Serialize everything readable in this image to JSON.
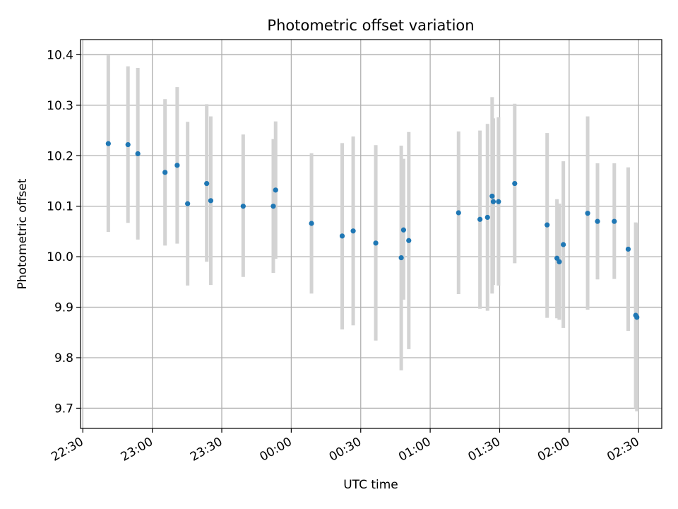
{
  "chart_data": {
    "type": "scatter",
    "title": "Photometric offset variation",
    "xlabel": "UTC time",
    "ylabel": "Photometric offset",
    "grid": true,
    "legend": "none",
    "xlim": [
      "22:29",
      "02:40"
    ],
    "ylim": [
      9.66,
      10.43
    ],
    "x_ticks": [
      "22:30",
      "23:00",
      "23:30",
      "00:00",
      "00:30",
      "01:00",
      "01:30",
      "02:00",
      "02:30"
    ],
    "y_ticks": [
      "9.7",
      "9.8",
      "9.9",
      "10.0",
      "10.1",
      "10.2",
      "10.3",
      "10.4"
    ],
    "colors": {
      "points": "#1f77b4",
      "errorbars": "#d3d3d3",
      "grid": "#b0b0b0"
    },
    "points": [
      {
        "x": "22:41:00",
        "y": 10.224,
        "lo": 10.049,
        "hi": 10.399
      },
      {
        "x": "22:49:30",
        "y": 10.222,
        "lo": 10.067,
        "hi": 10.377
      },
      {
        "x": "22:53:45",
        "y": 10.204,
        "lo": 10.034,
        "hi": 10.374
      },
      {
        "x": "23:05:30",
        "y": 10.167,
        "lo": 10.022,
        "hi": 10.312
      },
      {
        "x": "23:10:45",
        "y": 10.181,
        "lo": 10.026,
        "hi": 10.336
      },
      {
        "x": "23:15:15",
        "y": 10.105,
        "lo": 9.943,
        "hi": 10.267
      },
      {
        "x": "23:23:30",
        "y": 10.145,
        "lo": 9.99,
        "hi": 10.302
      },
      {
        "x": "23:25:15",
        "y": 10.111,
        "lo": 9.944,
        "hi": 10.278
      },
      {
        "x": "23:39:15",
        "y": 10.1,
        "lo": 9.96,
        "hi": 10.242
      },
      {
        "x": "23:52:15",
        "y": 10.1,
        "lo": 9.968,
        "hi": 10.233
      },
      {
        "x": "23:53:15",
        "y": 10.132,
        "lo": 9.996,
        "hi": 10.268
      },
      {
        "x": "00:08:45",
        "y": 10.066,
        "lo": 9.927,
        "hi": 10.205
      },
      {
        "x": "00:22:00",
        "y": 10.041,
        "lo": 9.856,
        "hi": 10.225
      },
      {
        "x": "00:26:45",
        "y": 10.051,
        "lo": 9.864,
        "hi": 10.238
      },
      {
        "x": "00:36:30",
        "y": 10.027,
        "lo": 9.834,
        "hi": 10.221
      },
      {
        "x": "00:47:30",
        "y": 9.998,
        "lo": 9.775,
        "hi": 10.22
      },
      {
        "x": "00:48:30",
        "y": 10.053,
        "lo": 9.915,
        "hi": 10.194
      },
      {
        "x": "00:50:45",
        "y": 10.032,
        "lo": 9.817,
        "hi": 10.247
      },
      {
        "x": "01:12:15",
        "y": 10.087,
        "lo": 9.926,
        "hi": 10.248
      },
      {
        "x": "01:21:30",
        "y": 10.074,
        "lo": 9.897,
        "hi": 10.25
      },
      {
        "x": "01:24:45",
        "y": 10.078,
        "lo": 9.893,
        "hi": 10.263
      },
      {
        "x": "01:26:45",
        "y": 10.12,
        "lo": 9.927,
        "hi": 10.316
      },
      {
        "x": "01:27:15",
        "y": 10.109,
        "lo": 9.944,
        "hi": 10.274
      },
      {
        "x": "01:29:30",
        "y": 10.109,
        "lo": 9.943,
        "hi": 10.276
      },
      {
        "x": "01:36:30",
        "y": 10.145,
        "lo": 9.987,
        "hi": 10.303
      },
      {
        "x": "01:50:30",
        "y": 10.063,
        "lo": 9.879,
        "hi": 10.245
      },
      {
        "x": "01:54:45",
        "y": 9.997,
        "lo": 9.878,
        "hi": 10.114
      },
      {
        "x": "01:55:45",
        "y": 9.99,
        "lo": 9.875,
        "hi": 10.105
      },
      {
        "x": "01:57:30",
        "y": 10.024,
        "lo": 9.859,
        "hi": 10.189
      },
      {
        "x": "02:08:00",
        "y": 10.086,
        "lo": 9.895,
        "hi": 10.278
      },
      {
        "x": "02:12:15",
        "y": 10.07,
        "lo": 9.955,
        "hi": 10.185
      },
      {
        "x": "02:19:30",
        "y": 10.07,
        "lo": 9.956,
        "hi": 10.185
      },
      {
        "x": "02:25:30",
        "y": 10.015,
        "lo": 9.853,
        "hi": 10.177
      },
      {
        "x": "02:28:45",
        "y": 9.884,
        "lo": 9.7,
        "hi": 10.068
      },
      {
        "x": "02:29:15",
        "y": 9.88,
        "lo": 9.694,
        "hi": 10.066
      }
    ]
  }
}
